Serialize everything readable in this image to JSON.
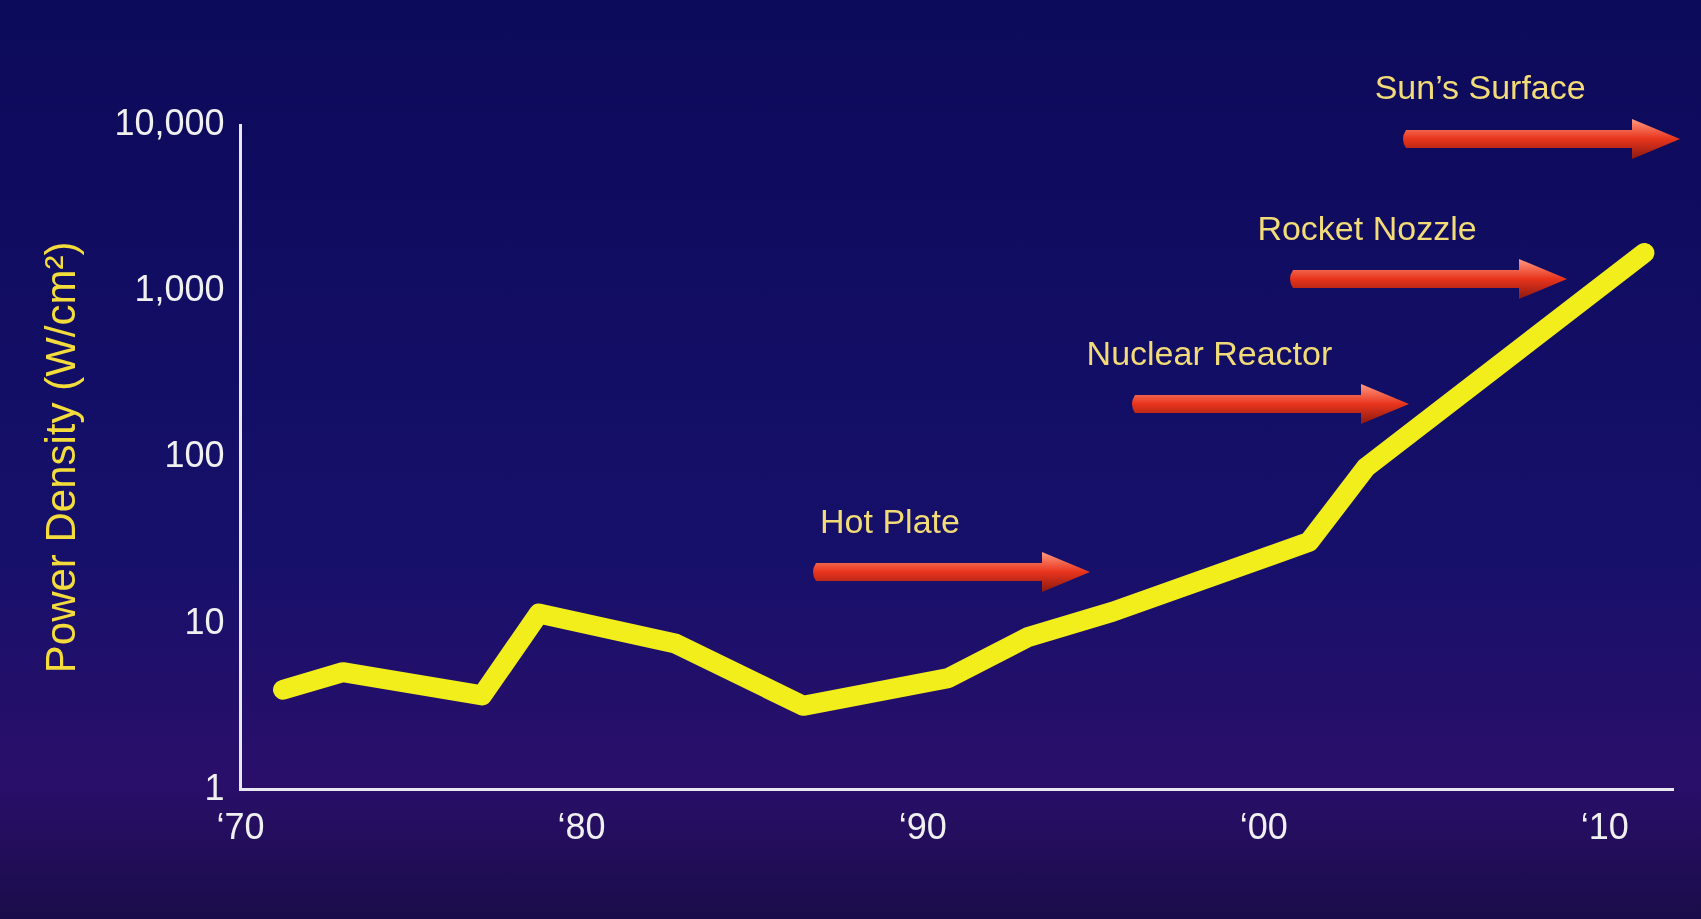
{
  "chart_data": {
    "type": "line",
    "ylabel": "Power Density (W/cm²)",
    "log": "y",
    "grid": false,
    "legend": false,
    "marker": "none",
    "line_style": "solid",
    "x": [
      "1971-04",
      "1973-01",
      "1977-02",
      "1978-10",
      "1982-10",
      "1986-07",
      "1990-10",
      "1993-02",
      "1995-08",
      "2001-05",
      "2003-01",
      "2011-03"
    ],
    "series": [
      {
        "color": "#f2ee1c",
        "values": [
          4,
          5.1,
          3.7,
          11.5,
          7.6,
          3.2,
          4.7,
          8.3,
          11.8,
          31,
          87,
          1700
        ]
      }
    ],
    "xlim": [
      "1970",
      "2012"
    ],
    "xticks": [
      {
        "value": "1970",
        "label": "‘70"
      },
      {
        "value": "1980",
        "label": "‘80"
      },
      {
        "value": "1990",
        "label": "‘90"
      },
      {
        "value": "2000",
        "label": "‘00"
      },
      {
        "value": "2010",
        "label": "‘10"
      }
    ],
    "ylim": [
      1,
      10000
    ],
    "yticks": [
      1,
      10,
      100,
      {
        "value": 1000,
        "label": "1,000"
      },
      {
        "value": 10000,
        "label": "10,000"
      }
    ],
    "annotations": [
      "Hot Plate",
      "Nuclear Reactor",
      "Rocket Nozzle",
      "Sun’s Surface"
    ]
  }
}
